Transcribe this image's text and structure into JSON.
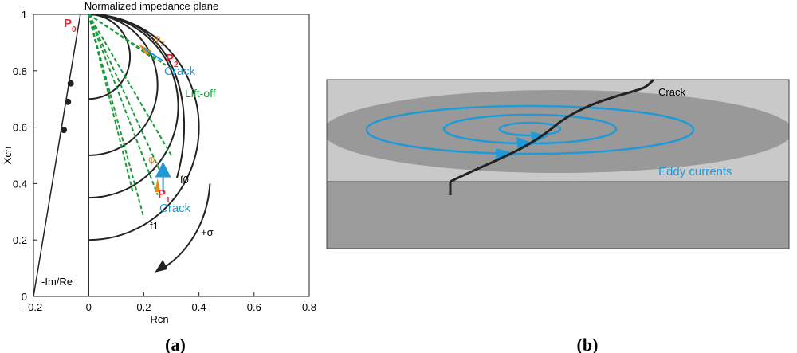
{
  "panel_a": {
    "title": "Normalized impedance plane",
    "x_label": "Rcn",
    "y_label": "Xcn",
    "xlim": [
      -0.2,
      0.8
    ],
    "ylim": [
      0,
      1
    ],
    "xticks": [
      -0.2,
      0,
      0.2,
      0.4,
      0.6,
      0.8
    ],
    "yticks": [
      0,
      0.2,
      0.4,
      0.6,
      0.8,
      1
    ],
    "p0": {
      "text": "P",
      "sub": "0"
    },
    "p1": {
      "text": "P",
      "sub": "1"
    },
    "p2": {
      "text": "P",
      "sub": "2"
    },
    "phi1": {
      "text": "φ",
      "sub": "1"
    },
    "phi2": {
      "text": "φ",
      "sub": "2"
    },
    "crack_top": "Crack",
    "crack_bottom": "Crack",
    "lift_off": "Lift-off",
    "f0": "f0",
    "f1": "f1",
    "sigma": "+σ",
    "im_re": "-Im/Re",
    "caption": "(a)"
  },
  "panel_b": {
    "crack": "Crack",
    "eddy": "Eddy currents",
    "caption": "(b)"
  }
}
